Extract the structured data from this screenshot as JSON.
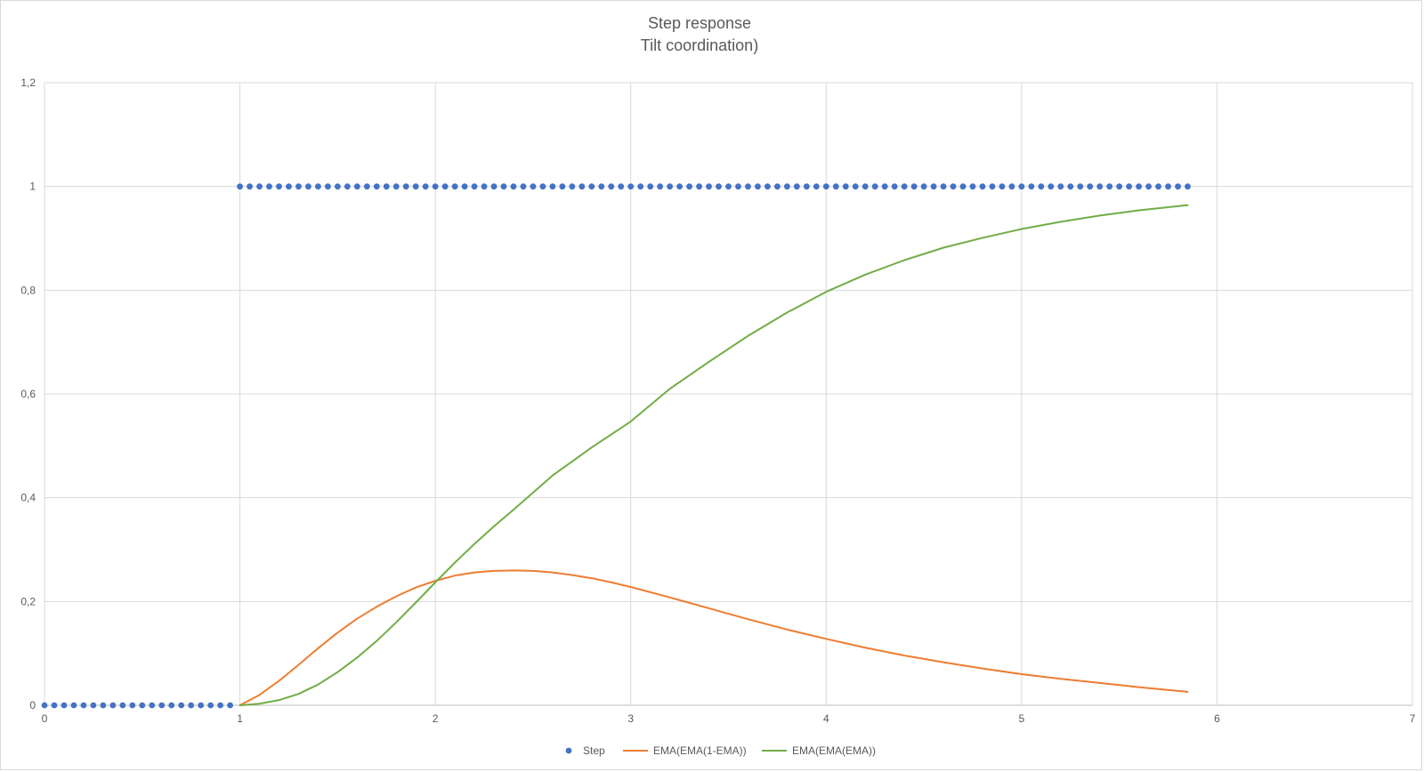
{
  "chart_data": {
    "type": "line",
    "title": "Step response",
    "subtitle": "Tilt coordination)",
    "xlabel": "",
    "ylabel": "",
    "xlim": [
      0,
      7
    ],
    "ylim": [
      0,
      1.2
    ],
    "x_ticks": [
      "0",
      "1",
      "2",
      "3",
      "4",
      "5",
      "6",
      "7"
    ],
    "y_ticks": [
      "0",
      "0,2",
      "0,4",
      "0,6",
      "0,8",
      "1",
      "1,2"
    ],
    "grid": true,
    "legend_position": "bottom",
    "series": [
      {
        "name": "Step",
        "kind": "scatter",
        "color": "#4472c4",
        "segments": [
          {
            "x_start": 0,
            "x_end": 0.95,
            "x_step": 0.05,
            "y": 0
          },
          {
            "x_start": 1.0,
            "x_end": 5.85,
            "x_step": 0.05,
            "y": 1
          }
        ]
      },
      {
        "name": "EMA(EMA(1-EMA))",
        "kind": "line",
        "color": "#ed7d31",
        "x": [
          1.0,
          1.1,
          1.2,
          1.3,
          1.4,
          1.5,
          1.6,
          1.7,
          1.8,
          1.9,
          2.0,
          2.1,
          2.2,
          2.3,
          2.4,
          2.5,
          2.6,
          2.7,
          2.8,
          2.9,
          3.0,
          3.2,
          3.4,
          3.6,
          3.8,
          4.0,
          4.2,
          4.4,
          4.6,
          4.8,
          5.0,
          5.2,
          5.4,
          5.6,
          5.85
        ],
        "y": [
          0.0,
          0.02,
          0.047,
          0.078,
          0.11,
          0.14,
          0.167,
          0.19,
          0.21,
          0.227,
          0.24,
          0.25,
          0.256,
          0.259,
          0.26,
          0.259,
          0.256,
          0.251,
          0.245,
          0.237,
          0.228,
          0.208,
          0.187,
          0.166,
          0.146,
          0.128,
          0.111,
          0.096,
          0.083,
          0.071,
          0.06,
          0.051,
          0.043,
          0.035,
          0.026
        ]
      },
      {
        "name": "EMA(EMA(EMA))",
        "kind": "line",
        "color": "#70ad47",
        "x": [
          1.0,
          1.1,
          1.2,
          1.3,
          1.4,
          1.5,
          1.6,
          1.7,
          1.8,
          1.9,
          2.0,
          2.1,
          2.2,
          2.3,
          2.4,
          2.5,
          2.6,
          2.8,
          3.0,
          3.2,
          3.4,
          3.6,
          3.8,
          4.0,
          4.2,
          4.4,
          4.6,
          4.8,
          5.0,
          5.2,
          5.4,
          5.6,
          5.85
        ],
        "y": [
          0.0,
          0.003,
          0.01,
          0.022,
          0.04,
          0.064,
          0.092,
          0.124,
          0.16,
          0.198,
          0.237,
          0.275,
          0.311,
          0.345,
          0.377,
          0.41,
          0.443,
          0.497,
          0.547,
          0.61,
          0.662,
          0.712,
          0.757,
          0.797,
          0.83,
          0.858,
          0.882,
          0.901,
          0.918,
          0.932,
          0.944,
          0.954,
          0.964
        ]
      }
    ]
  }
}
